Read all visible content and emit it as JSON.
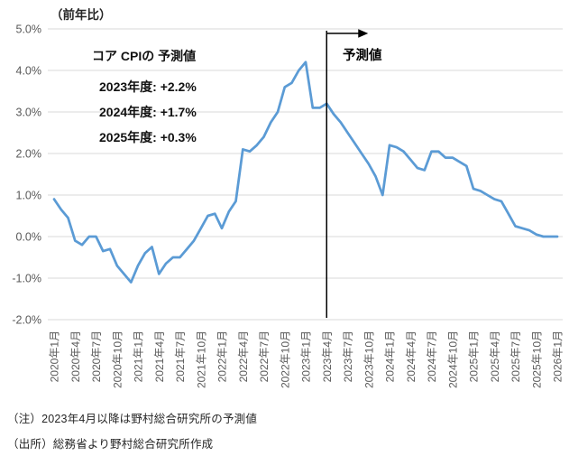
{
  "chart": {
    "title": "（前年比）",
    "annotation": {
      "heading": "コア CPIの 予測値",
      "lines": [
        "2023年度: +2.2%",
        "2024年度: +1.7%",
        "2025年度: +0.3%"
      ]
    },
    "forecast_label": "予測値",
    "note1": "（注）2023年4月以降は野村総合研究所の予測値",
    "note2": "（出所）総務省より野村総合研究所作成"
  },
  "chart_data": {
    "type": "line",
    "title": "（前年比）",
    "x_frequency": "monthly",
    "x_start": "2020年1月",
    "x_end": "2026年1月",
    "x_tick_labels": [
      "2020年1月",
      "2020年4月",
      "2020年7月",
      "2020年10月",
      "2021年1月",
      "2021年4月",
      "2021年7月",
      "2021年10月",
      "2022年1月",
      "2022年4月",
      "2022年7月",
      "2022年10月",
      "2023年1月",
      "2023年4月",
      "2023年7月",
      "2023年10月",
      "2024年1月",
      "2024年4月",
      "2024年7月",
      "2024年10月",
      "2025年1月",
      "2025年4月",
      "2025年7月",
      "2025年10月",
      "2026年1月"
    ],
    "series": [
      {
        "name": "コアCPI前年比",
        "values": [
          0.9,
          0.65,
          0.45,
          -0.1,
          -0.2,
          0.0,
          0.0,
          -0.35,
          -0.3,
          -0.7,
          -0.9,
          -1.1,
          -0.7,
          -0.4,
          -0.25,
          -0.9,
          -0.65,
          -0.5,
          -0.5,
          -0.3,
          -0.1,
          0.2,
          0.5,
          0.55,
          0.2,
          0.6,
          0.85,
          2.1,
          2.05,
          2.2,
          2.4,
          2.75,
          3.0,
          3.6,
          3.7,
          4.0,
          4.2,
          3.1,
          3.1,
          3.2,
          2.95,
          2.75,
          2.5,
          2.25,
          2.0,
          1.75,
          1.45,
          1.0,
          2.2,
          2.15,
          2.05,
          1.85,
          1.65,
          1.6,
          2.05,
          2.05,
          1.9,
          1.9,
          1.8,
          1.7,
          1.15,
          1.1,
          1.0,
          0.9,
          0.85,
          0.55,
          0.25,
          0.2,
          0.15,
          0.05,
          0.0,
          0.0,
          0.0
        ]
      }
    ],
    "yticks": [
      {
        "label": "5.0%",
        "value": 5.0
      },
      {
        "label": "4.0%",
        "value": 4.0
      },
      {
        "label": "3.0%",
        "value": 3.0
      },
      {
        "label": "2.0%",
        "value": 2.0
      },
      {
        "label": "1.0%",
        "value": 1.0
      },
      {
        "label": "0.0%",
        "value": 0.0
      },
      {
        "label": "-1.0%",
        "value": -1.0
      },
      {
        "label": "-2.0%",
        "value": -2.0
      }
    ],
    "ylim": [
      -2.0,
      5.0
    ],
    "grid": true,
    "legend": "none",
    "line_color": "#5B9BD5",
    "grid_color": "#D9D9D9",
    "axis_label_color": "#595959",
    "forecast_divider_color": "#000000",
    "forecast_start_label": "2023年4月"
  }
}
